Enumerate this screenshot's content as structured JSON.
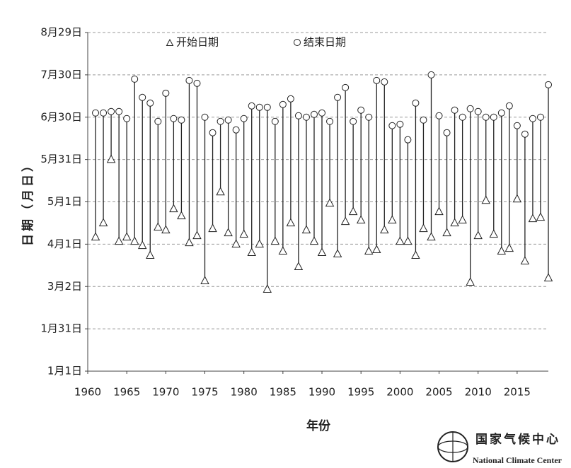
{
  "chart_data": {
    "type": "dumbbell",
    "x_label": "年份",
    "y_label": "日期（月日）",
    "x": [
      1961,
      1962,
      1963,
      1964,
      1965,
      1966,
      1967,
      1968,
      1969,
      1970,
      1971,
      1972,
      1973,
      1974,
      1975,
      1976,
      1977,
      1978,
      1979,
      1980,
      1981,
      1982,
      1983,
      1984,
      1985,
      1986,
      1987,
      1988,
      1989,
      1990,
      1991,
      1992,
      1993,
      1994,
      1995,
      1996,
      1997,
      1998,
      1999,
      2000,
      2001,
      2002,
      2003,
      2004,
      2005,
      2006,
      2007,
      2008,
      2009,
      2010,
      2011,
      2012,
      2013,
      2014,
      2015,
      2016,
      2017,
      2018,
      2019
    ],
    "series": [
      {
        "name": "开始日期",
        "color": "#222222",
        "values": [
          96,
          106,
          151,
          93,
          96,
          93,
          90,
          83,
          103,
          101,
          116,
          111,
          92,
          97,
          65,
          102,
          128,
          99,
          91,
          98,
          85,
          91,
          59,
          93,
          86,
          106,
          75,
          101,
          93,
          85,
          120,
          84,
          107,
          114,
          108,
          86,
          87,
          101,
          108,
          93,
          93,
          83,
          102,
          96,
          114,
          99,
          106,
          108,
          64,
          97,
          122,
          98,
          86,
          88,
          123,
          79,
          109,
          110,
          67
        ]
      },
      {
        "name": "结束日期",
        "color": "#222222",
        "values": [
          184,
          184,
          185,
          185,
          180,
          208,
          195,
          191,
          178,
          198,
          180,
          179,
          207,
          205,
          181,
          170,
          178,
          179,
          172,
          180,
          189,
          188,
          188,
          178,
          190,
          194,
          182,
          181,
          183,
          184,
          178,
          195,
          202,
          178,
          186,
          181,
          207,
          206,
          175,
          176,
          165,
          191,
          179,
          211,
          182,
          170,
          186,
          181,
          187,
          185,
          181,
          181,
          184,
          189,
          175,
          169,
          180,
          181,
          204
        ]
      }
    ],
    "xlim": [
      1960,
      2019
    ],
    "xticks": [
      1960,
      1965,
      1970,
      1975,
      1980,
      1985,
      1990,
      1995,
      2000,
      2005,
      2010,
      2015
    ],
    "ylim": [
      1,
      241
    ],
    "yticks": [
      {
        "value": 1,
        "label": "1月1日"
      },
      {
        "value": 31,
        "label": "1月31日"
      },
      {
        "value": 61,
        "label": "3月2日"
      },
      {
        "value": 91,
        "label": "4月1日"
      },
      {
        "value": 121,
        "label": "5月1日"
      },
      {
        "value": 151,
        "label": "5月31日"
      },
      {
        "value": 181,
        "label": "6月30日"
      },
      {
        "value": 211,
        "label": "7月30日"
      },
      {
        "value": 241,
        "label": "8月29日"
      }
    ],
    "grid": true
  },
  "logo": {
    "name_cn": "国家气候中心",
    "name_en": "National Climate Center"
  }
}
